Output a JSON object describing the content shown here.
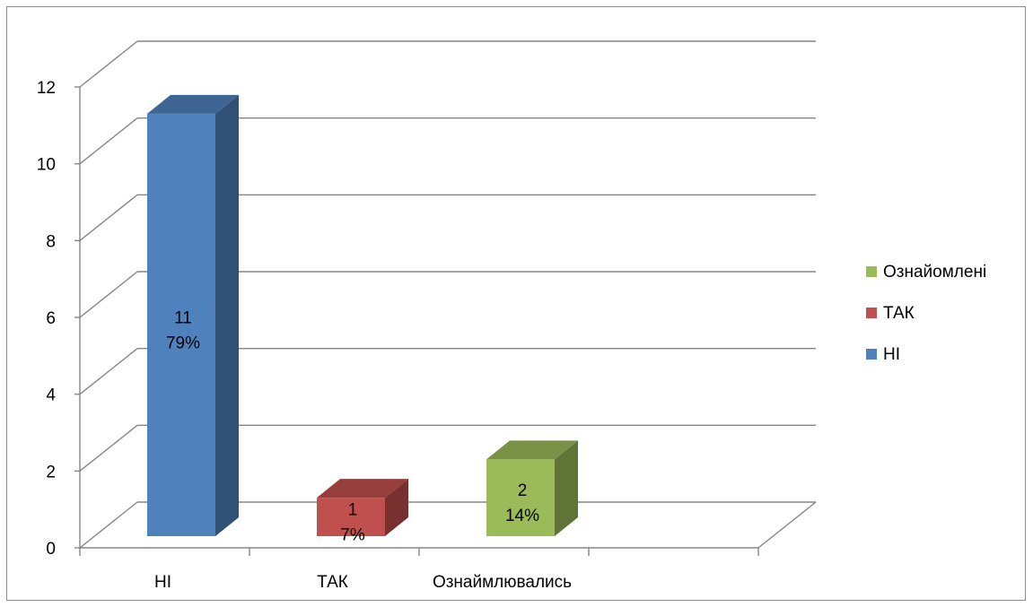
{
  "chart_data": {
    "type": "bar",
    "subtype": "3d-column",
    "categories": [
      "НІ",
      "ТАК",
      "Ознаймлювались"
    ],
    "values": [
      11,
      1,
      2
    ],
    "percent_labels": [
      "79%",
      "7%",
      "14%"
    ],
    "value_labels": [
      "11",
      "1",
      "2"
    ],
    "y_ticks": [
      "0",
      "2",
      "4",
      "6",
      "8",
      "10",
      "12"
    ],
    "ylim": [
      0,
      12
    ],
    "grid": true,
    "legend_position": "right",
    "legend": [
      {
        "name": "Ознайомлені",
        "color": "#9bbb59"
      },
      {
        "name": "ТАК",
        "color": "#c0504d"
      },
      {
        "name": "НІ",
        "color": "#4f81bd"
      }
    ],
    "bar_colors": [
      "#4f81bd",
      "#c0504d",
      "#9bbb59"
    ]
  }
}
